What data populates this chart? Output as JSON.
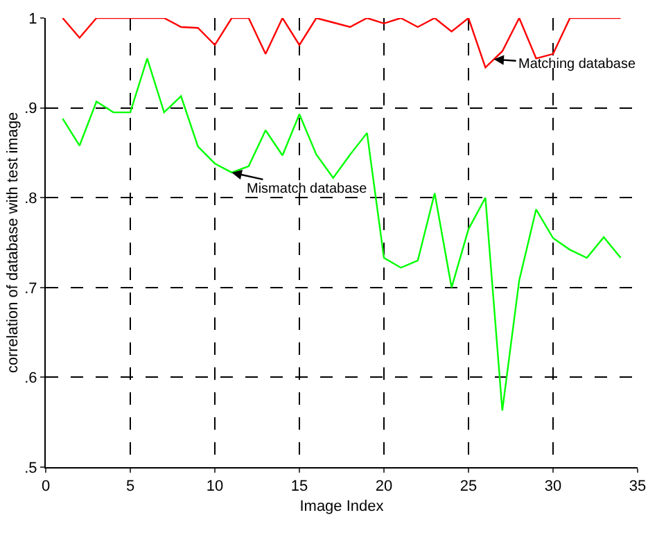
{
  "chart_data": {
    "type": "line",
    "xlabel": "Image Index",
    "ylabel": "correlation of database with test image",
    "x": [
      1,
      2,
      3,
      4,
      5,
      6,
      7,
      8,
      9,
      10,
      11,
      12,
      13,
      14,
      15,
      16,
      17,
      18,
      19,
      20,
      21,
      22,
      23,
      24,
      25,
      26,
      27,
      28,
      29,
      30,
      31,
      32,
      33,
      34
    ],
    "series": [
      {
        "color": "#ff0000",
        "values": [
          1.0,
          0.978,
          1.0,
          1.0,
          1.0,
          1.0,
          1.0,
          0.99,
          0.989,
          0.97,
          1.0,
          1.0,
          0.96,
          1.0,
          0.97,
          1.0,
          0.995,
          0.99,
          1.0,
          0.994,
          1.0,
          0.99,
          1.0,
          0.985,
          1.0,
          0.945,
          0.963,
          1.0,
          0.955,
          0.96,
          1.0,
          1.0,
          1.0,
          1.0
        ]
      },
      {
        "color": "#00ff00",
        "values": [
          0.888,
          0.858,
          0.907,
          0.895,
          0.895,
          0.955,
          0.895,
          0.913,
          0.857,
          0.838,
          0.828,
          0.835,
          0.875,
          0.847,
          0.893,
          0.848,
          0.822,
          0.848,
          0.872,
          0.733,
          0.722,
          0.73,
          0.805,
          0.7,
          0.765,
          0.8,
          0.563,
          0.708,
          0.787,
          0.755,
          0.742,
          0.733,
          0.756,
          0.733
        ]
      }
    ],
    "annotations": [
      {
        "text": "Matching database",
        "x": 26.5,
        "y": 0.954
      },
      {
        "text": "Mismatch database",
        "x": 11.0,
        "y": 0.828
      }
    ],
    "xlim": [
      0,
      35
    ],
    "xticks": [
      0,
      5,
      10,
      15,
      20,
      25,
      30,
      35
    ],
    "ylim": [
      0.5,
      1.0
    ],
    "yticks": [
      {
        "value": 0.5,
        "label": ".5"
      },
      {
        "value": 0.6,
        "label": ".6"
      },
      {
        "value": 0.7,
        "label": ".7"
      },
      {
        "value": 0.8,
        "label": ".8"
      },
      {
        "value": 0.9,
        "label": ".9"
      },
      1
    ],
    "grid": true,
    "line_style": "solid",
    "marker": "none"
  }
}
